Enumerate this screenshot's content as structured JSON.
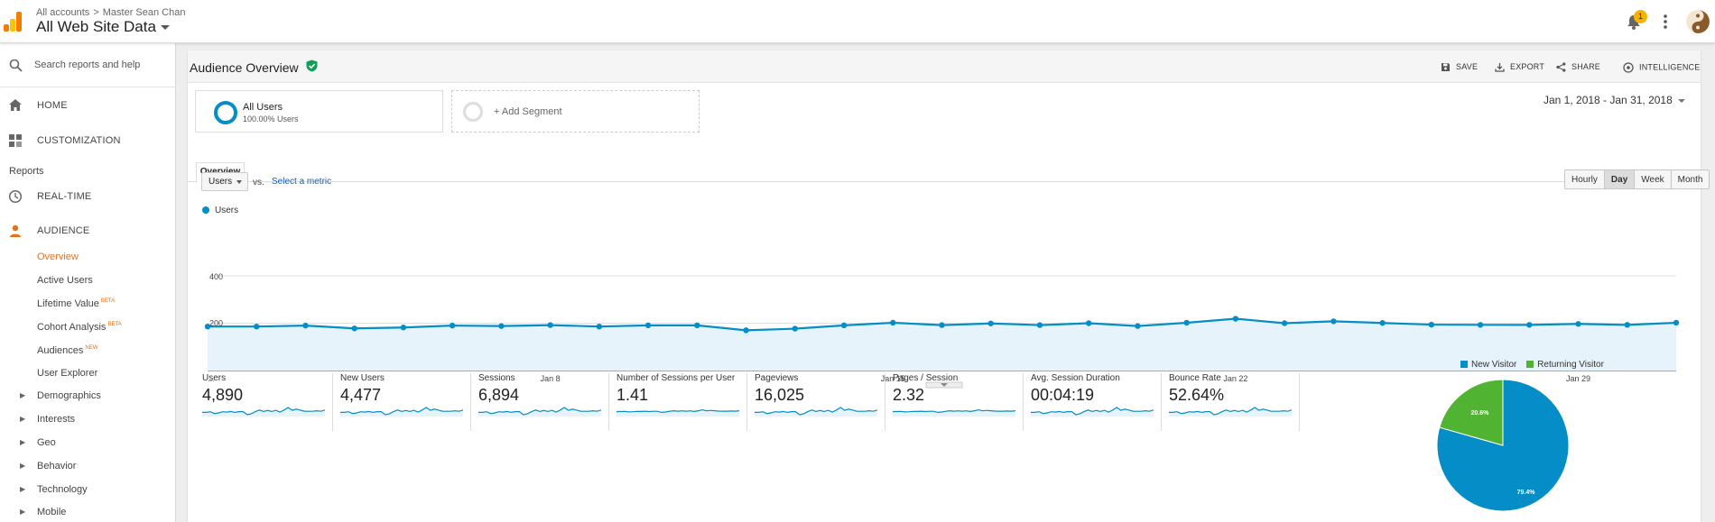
{
  "header": {
    "breadcrumb": [
      "All accounts",
      "Master Sean Chan"
    ],
    "breadcrumb_sep": ">",
    "property_name": "All Web Site Data",
    "notification_count": "1"
  },
  "sidebar": {
    "search_placeholder": "Search reports and help",
    "home": "HOME",
    "customization": "CUSTOMIZATION",
    "reports_label": "Reports",
    "realtime": "REAL-TIME",
    "audience": "AUDIENCE",
    "audience_items": [
      {
        "label": "Overview",
        "active": true,
        "tag": ""
      },
      {
        "label": "Active Users",
        "active": false,
        "tag": ""
      },
      {
        "label": "Lifetime Value",
        "active": false,
        "tag": "BETA"
      },
      {
        "label": "Cohort Analysis",
        "active": false,
        "tag": "BETA"
      },
      {
        "label": "Audiences",
        "active": false,
        "tag": "NEW"
      },
      {
        "label": "User Explorer",
        "active": false,
        "tag": ""
      }
    ],
    "expandable_items": [
      "Demographics",
      "Interests",
      "Geo",
      "Behavior",
      "Technology",
      "Mobile"
    ]
  },
  "report": {
    "title": "Audience Overview",
    "actions": {
      "save": "SAVE",
      "export": "EXPORT",
      "share": "SHARE",
      "intelligence": "INTELLIGENCE"
    },
    "segment": {
      "name": "All Users",
      "subtitle": "100.00% Users",
      "add_label": "+ Add Segment"
    },
    "date_range": "Jan 1, 2018 - Jan 31, 2018",
    "tab": "Overview",
    "metric": "Users",
    "vs": "vs.",
    "select_metric": "Select a metric",
    "granularity": [
      "Hourly",
      "Day",
      "Week",
      "Month"
    ],
    "granularity_selected": "Day"
  },
  "chart_data": [
    {
      "type": "line",
      "series": [
        {
          "name": "Users",
          "color": "#058dc7",
          "values": [
            186,
            186,
            190,
            178,
            182,
            190,
            188,
            192,
            186,
            191,
            191,
            170,
            177,
            191,
            202,
            192,
            199,
            192,
            200,
            188,
            202,
            219,
            200,
            208,
            201,
            194,
            193,
            193,
            197,
            193,
            202
          ]
        }
      ],
      "x": [
        1,
        2,
        3,
        4,
        5,
        6,
        7,
        8,
        9,
        10,
        11,
        12,
        13,
        14,
        15,
        16,
        17,
        18,
        19,
        20,
        21,
        22,
        23,
        24,
        25,
        26,
        27,
        28,
        29,
        30,
        31
      ],
      "x_ticks": [
        {
          "day": 8,
          "label": "Jan 8"
        },
        {
          "day": 15,
          "label": "Jan 15"
        },
        {
          "day": 22,
          "label": "Jan 22"
        },
        {
          "day": 29,
          "label": "Jan 29"
        }
      ],
      "x_start_label": "...",
      "y_ticks": [
        "400",
        "200"
      ],
      "ylim": [
        0,
        400
      ],
      "grid": true
    },
    {
      "type": "pie",
      "slices": [
        {
          "name": "New Visitor",
          "value": 79.4,
          "label": "79.4%",
          "color": "#058dc7"
        },
        {
          "name": "Returning Visitor",
          "value": 20.6,
          "label": "20.6%",
          "color": "#50b432"
        }
      ],
      "legend": "top"
    }
  ],
  "scorecards": [
    {
      "label": "Users",
      "value": "4,890"
    },
    {
      "label": "New Users",
      "value": "4,477"
    },
    {
      "label": "Sessions",
      "value": "6,894"
    },
    {
      "label": "Number of Sessions per User",
      "value": "1.41"
    },
    {
      "label": "Pageviews",
      "value": "16,025"
    },
    {
      "label": "Pages / Session",
      "value": "2.32"
    },
    {
      "label": "Avg. Session Duration",
      "value": "00:04:19"
    },
    {
      "label": "Bounce Rate",
      "value": "52.64%"
    }
  ],
  "colors": {
    "accent": "#058dc7",
    "returning": "#50b432",
    "active_nav": "#e8711a",
    "logo_orange": "#f57c00",
    "logo_yellow": "#ffc107"
  }
}
